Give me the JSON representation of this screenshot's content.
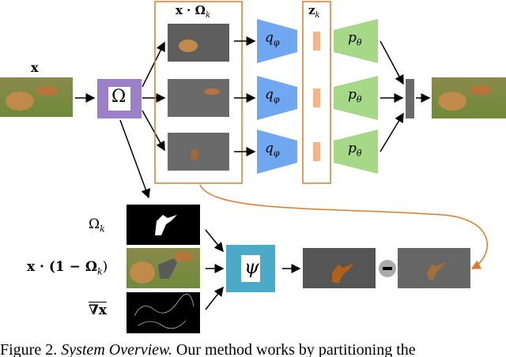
{
  "labels": {
    "input": "x",
    "partition": "Ω",
    "masked": "x · Ω",
    "masked_sub": "k",
    "latent": "z",
    "latent_sub": "k",
    "encoder": "q",
    "encoder_sub": "φ",
    "decoder": "p",
    "decoder_sub": "θ",
    "mask": "Ω",
    "mask_sub": "k",
    "context_pre": "x · (1 − Ω",
    "context_sub": "k",
    "context_post": ")",
    "gradient": "∇x",
    "inpainter": "ψ",
    "minus": "−"
  },
  "caption": {
    "number": "Figure 2.",
    "title": "System Overview.",
    "text": "Our method works by partitioning the"
  },
  "colors": {
    "partition_box": "#9b7fc7",
    "encoder": "#6fa8f0",
    "decoder": "#a6d987",
    "frame": "#e07a2a",
    "latent_bar": "#f2b68a",
    "inpainter_box": "#4aaac8",
    "masked_bg": "#5e5e5e",
    "silhouette": "#b0601a"
  }
}
